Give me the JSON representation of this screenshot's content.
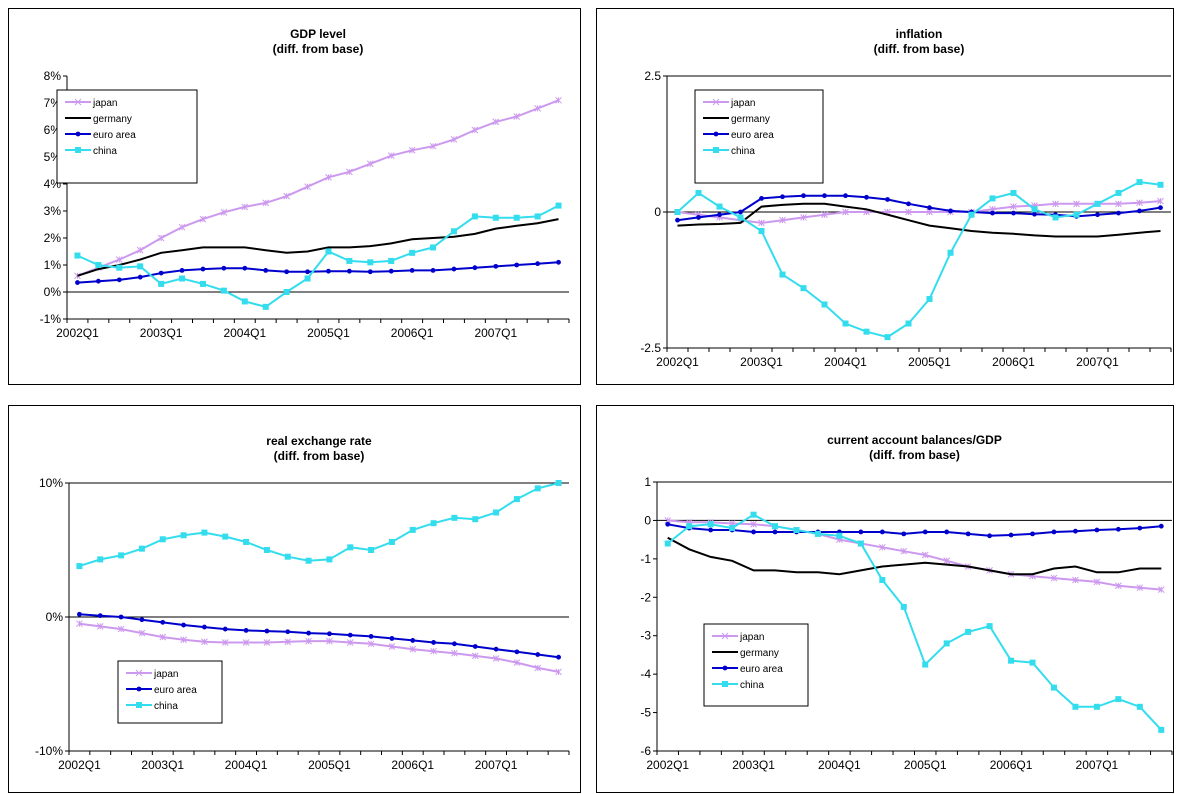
{
  "colors": {
    "japan": "#cc99ee",
    "germany": "#000000",
    "euro area": "#0000cc",
    "china": "#33ddee"
  },
  "chart_data": [
    {
      "id": "gdp",
      "type": "line",
      "title": "GDP level",
      "subtitle": "(diff. from base)",
      "xticks": [
        "2002Q1",
        "2003Q1",
        "2004Q1",
        "2005Q1",
        "2006Q1",
        "2007Q1"
      ],
      "ylim": [
        -1,
        8
      ],
      "yticks": [
        -1,
        0,
        1,
        2,
        3,
        4,
        5,
        6,
        7,
        8
      ],
      "ytick_labels": [
        "-1%",
        "0%",
        "1%",
        "2%",
        "3%",
        "4%",
        "5%",
        "6%",
        "7%",
        "8%"
      ],
      "series": [
        {
          "name": "japan",
          "marker": "x",
          "values": [
            0.6,
            0.9,
            1.2,
            1.55,
            2.0,
            2.4,
            2.7,
            2.95,
            3.15,
            3.3,
            3.55,
            3.9,
            4.25,
            4.45,
            4.75,
            5.05,
            5.25,
            5.4,
            5.65,
            6.0,
            6.3,
            6.5,
            6.8,
            7.1
          ]
        },
        {
          "name": "germany",
          "marker": "none",
          "values": [
            0.6,
            0.85,
            1.0,
            1.2,
            1.45,
            1.55,
            1.65,
            1.65,
            1.65,
            1.55,
            1.45,
            1.5,
            1.65,
            1.65,
            1.7,
            1.8,
            1.95,
            2.0,
            2.05,
            2.15,
            2.35,
            2.45,
            2.55,
            2.7
          ]
        },
        {
          "name": "euro area",
          "marker": "dot",
          "values": [
            0.35,
            0.4,
            0.45,
            0.55,
            0.7,
            0.8,
            0.85,
            0.88,
            0.88,
            0.8,
            0.75,
            0.75,
            0.77,
            0.77,
            0.75,
            0.77,
            0.8,
            0.8,
            0.85,
            0.9,
            0.95,
            1.0,
            1.05,
            1.1
          ]
        },
        {
          "name": "china",
          "marker": "square",
          "values": [
            1.35,
            1.0,
            0.9,
            0.95,
            0.3,
            0.5,
            0.3,
            0.05,
            -0.35,
            -0.55,
            0.0,
            0.5,
            1.5,
            1.15,
            1.1,
            1.15,
            1.45,
            1.65,
            2.25,
            2.8,
            2.75,
            2.75,
            2.8,
            3.2
          ]
        }
      ]
    },
    {
      "id": "inflation",
      "type": "line",
      "title": "inflation",
      "subtitle": "(diff. from base)",
      "xticks": [
        "2002Q1",
        "2003Q1",
        "2004Q1",
        "2005Q1",
        "2006Q1",
        "2007Q1"
      ],
      "ylim": [
        -2.5,
        2.5
      ],
      "yticks": [
        -2.5,
        0,
        2.5
      ],
      "ytick_labels": [
        "-2.5",
        "0",
        "2.5"
      ],
      "series": [
        {
          "name": "japan",
          "marker": "x",
          "values": [
            0.0,
            -0.05,
            -0.1,
            -0.15,
            -0.2,
            -0.15,
            -0.1,
            -0.05,
            0.0,
            0.0,
            0.0,
            0.0,
            0.0,
            0.0,
            0.0,
            0.05,
            0.1,
            0.12,
            0.15,
            0.15,
            0.15,
            0.15,
            0.17,
            0.2
          ]
        },
        {
          "name": "germany",
          "marker": "none",
          "values": [
            -0.25,
            -0.23,
            -0.22,
            -0.2,
            0.1,
            0.13,
            0.15,
            0.15,
            0.1,
            0.05,
            -0.05,
            -0.15,
            -0.25,
            -0.3,
            -0.35,
            -0.38,
            -0.4,
            -0.43,
            -0.45,
            -0.45,
            -0.45,
            -0.42,
            -0.38,
            -0.35
          ]
        },
        {
          "name": "euro area",
          "marker": "dot",
          "values": [
            -0.15,
            -0.1,
            -0.05,
            0.0,
            0.25,
            0.28,
            0.3,
            0.3,
            0.3,
            0.27,
            0.23,
            0.15,
            0.08,
            0.02,
            0.0,
            -0.02,
            -0.02,
            -0.04,
            -0.05,
            -0.08,
            -0.05,
            -0.02,
            0.02,
            0.08
          ]
        },
        {
          "name": "china",
          "marker": "square",
          "values": [
            0.0,
            0.35,
            0.1,
            -0.1,
            -0.35,
            -1.15,
            -1.4,
            -1.7,
            -2.05,
            -2.2,
            -2.3,
            -2.05,
            -1.6,
            -0.75,
            -0.05,
            0.25,
            0.35,
            0.05,
            -0.1,
            -0.05,
            0.15,
            0.35,
            0.55,
            0.5
          ]
        }
      ]
    },
    {
      "id": "rer",
      "type": "line",
      "title": "real exchange rate",
      "subtitle": "(diff. from base)",
      "xticks": [
        "2002Q1",
        "2003Q1",
        "2004Q1",
        "2005Q1",
        "2006Q1",
        "2007Q1"
      ],
      "ylim": [
        -10,
        10
      ],
      "yticks": [
        -10,
        0,
        10
      ],
      "ytick_labels": [
        "-10%",
        "0%",
        "10%"
      ],
      "series": [
        {
          "name": "japan",
          "marker": "x",
          "values": [
            -0.5,
            -0.7,
            -0.9,
            -1.2,
            -1.5,
            -1.7,
            -1.85,
            -1.9,
            -1.9,
            -1.9,
            -1.85,
            -1.8,
            -1.8,
            -1.9,
            -2.0,
            -2.2,
            -2.4,
            -2.55,
            -2.7,
            -2.9,
            -3.1,
            -3.4,
            -3.8,
            -4.1
          ]
        },
        {
          "name": "euro area",
          "marker": "dot",
          "values": [
            0.2,
            0.1,
            0.0,
            -0.2,
            -0.4,
            -0.6,
            -0.75,
            -0.9,
            -1.0,
            -1.05,
            -1.1,
            -1.2,
            -1.25,
            -1.35,
            -1.45,
            -1.6,
            -1.75,
            -1.9,
            -2.0,
            -2.2,
            -2.4,
            -2.6,
            -2.8,
            -3.0
          ]
        },
        {
          "name": "china",
          "marker": "square",
          "values": [
            3.8,
            4.3,
            4.6,
            5.1,
            5.8,
            6.1,
            6.3,
            6.0,
            5.6,
            5.0,
            4.5,
            4.2,
            4.3,
            5.2,
            5.0,
            5.6,
            6.5,
            7.0,
            7.4,
            7.3,
            7.8,
            8.8,
            9.6,
            10.0
          ]
        }
      ]
    },
    {
      "id": "ca",
      "type": "line",
      "title": "current account balances/GDP",
      "subtitle": "(diff. from base)",
      "xticks": [
        "2002Q1",
        "2003Q1",
        "2004Q1",
        "2005Q1",
        "2006Q1",
        "2007Q1"
      ],
      "ylim": [
        -6,
        1
      ],
      "yticks": [
        -6,
        -5,
        -4,
        -3,
        -2,
        -1,
        0,
        1
      ],
      "ytick_labels": [
        "-6",
        "-5",
        "-4",
        "-3",
        "-2",
        "-1",
        "0",
        "1"
      ],
      "series": [
        {
          "name": "japan",
          "marker": "x",
          "values": [
            0.0,
            -0.05,
            -0.05,
            -0.08,
            -0.1,
            -0.15,
            -0.25,
            -0.35,
            -0.5,
            -0.6,
            -0.7,
            -0.8,
            -0.9,
            -1.05,
            -1.2,
            -1.3,
            -1.4,
            -1.45,
            -1.5,
            -1.55,
            -1.6,
            -1.7,
            -1.75,
            -1.8
          ]
        },
        {
          "name": "germany",
          "marker": "none",
          "values": [
            -0.45,
            -0.75,
            -0.95,
            -1.05,
            -1.3,
            -1.3,
            -1.35,
            -1.35,
            -1.4,
            -1.3,
            -1.2,
            -1.15,
            -1.1,
            -1.15,
            -1.2,
            -1.3,
            -1.4,
            -1.4,
            -1.25,
            -1.2,
            -1.35,
            -1.35,
            -1.25,
            -1.25
          ]
        },
        {
          "name": "euro area",
          "marker": "dot",
          "values": [
            -0.1,
            -0.2,
            -0.25,
            -0.25,
            -0.3,
            -0.3,
            -0.3,
            -0.3,
            -0.3,
            -0.3,
            -0.3,
            -0.35,
            -0.3,
            -0.3,
            -0.35,
            -0.4,
            -0.38,
            -0.35,
            -0.3,
            -0.28,
            -0.25,
            -0.23,
            -0.2,
            -0.15
          ]
        },
        {
          "name": "china",
          "marker": "square",
          "values": [
            -0.6,
            -0.15,
            -0.1,
            -0.2,
            0.15,
            -0.15,
            -0.25,
            -0.35,
            -0.4,
            -0.6,
            -1.55,
            -2.25,
            -3.75,
            -3.2,
            -2.9,
            -2.75,
            -3.65,
            -3.7,
            -4.35,
            -4.85,
            -4.85,
            -4.65,
            -4.85,
            -5.45
          ]
        }
      ]
    }
  ]
}
